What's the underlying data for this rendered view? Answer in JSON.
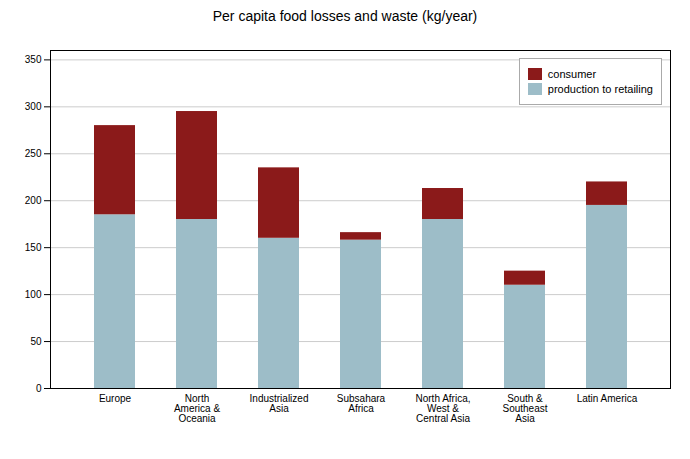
{
  "chart_data": {
    "type": "bar",
    "stacked": true,
    "title": "Per capita food losses and waste (kg/year)",
    "categories": [
      "Europe",
      "North\nAmerica &\nOceania",
      "Industrialized\nAsia",
      "Subsahara\nAfrica",
      "North Africa,\nWest &\nCentral Asia",
      "South &\nSoutheast\nAsia",
      "Latin America"
    ],
    "series": [
      {
        "name": "production to retailing",
        "color": "#9dbdc8",
        "values": [
          185,
          180,
          160,
          158,
          180,
          110,
          195
        ]
      },
      {
        "name": "consumer",
        "color": "#8b1a1a",
        "values": [
          95,
          115,
          75,
          8,
          33,
          15,
          25
        ]
      }
    ],
    "ylim": [
      0,
      360
    ],
    "yticks": [
      0,
      50,
      100,
      150,
      200,
      250,
      300,
      350
    ],
    "grid": true,
    "legend": "upper right"
  }
}
